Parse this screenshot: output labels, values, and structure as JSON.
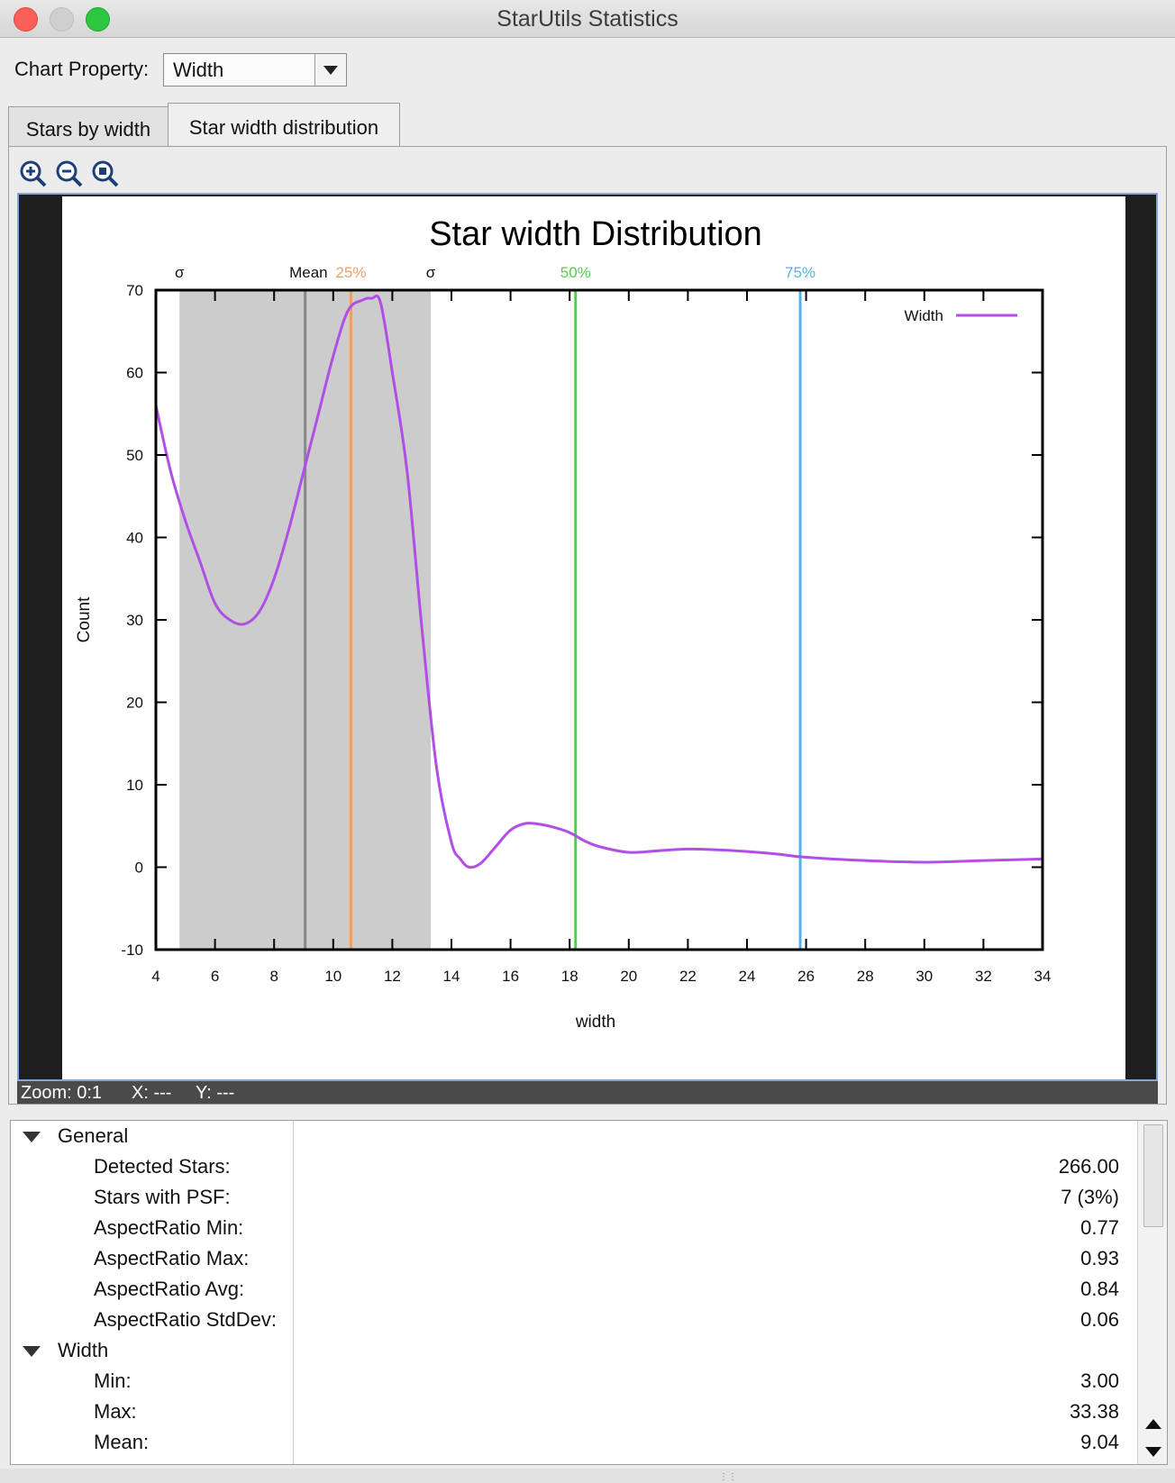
{
  "window": {
    "title": "StarUtils Statistics"
  },
  "toolbar": {
    "property_label": "Chart Property:",
    "property_value": "Width"
  },
  "tabs": [
    {
      "label": "Stars by width",
      "selected": false
    },
    {
      "label": "Star width distribution",
      "selected": true
    }
  ],
  "zoom_controls": [
    {
      "name": "zoom-in-icon"
    },
    {
      "name": "zoom-out-icon"
    },
    {
      "name": "zoom-reset-icon"
    }
  ],
  "status": {
    "zoom": "Zoom: 0:1",
    "x": "X: ---",
    "y": "Y: ---"
  },
  "chart_data": {
    "type": "line",
    "title": "Star width Distribution",
    "xlabel": "width",
    "ylabel": "Count",
    "xlim": [
      4,
      34
    ],
    "ylim": [
      -10,
      70
    ],
    "xticks": [
      4,
      6,
      8,
      10,
      12,
      14,
      16,
      18,
      20,
      22,
      24,
      26,
      28,
      30,
      32,
      34
    ],
    "yticks": [
      -10,
      0,
      10,
      20,
      30,
      40,
      50,
      60,
      70
    ],
    "grid": false,
    "legend": {
      "position": "top-right"
    },
    "series": [
      {
        "name": "Width",
        "color": "#b04ee6",
        "x": [
          4.0,
          4.5,
          5.0,
          5.5,
          6.0,
          6.5,
          7.0,
          7.5,
          8.0,
          8.5,
          9.0,
          9.5,
          10.0,
          10.5,
          11.0,
          11.3,
          11.6,
          12.0,
          12.5,
          13.0,
          13.5,
          14.0,
          14.3,
          14.6,
          15.0,
          15.5,
          16.0,
          16.5,
          17.0,
          17.5,
          18.0,
          18.5,
          19.0,
          20.0,
          21.0,
          22.0,
          23.0,
          24.0,
          25.0,
          26.0,
          28.0,
          30.0,
          32.0,
          34.0
        ],
        "y": [
          56,
          48,
          42,
          37,
          32,
          30,
          29.5,
          31,
          35,
          41,
          48,
          55,
          62,
          67.5,
          68.8,
          69,
          68.5,
          60,
          48,
          29,
          12,
          3,
          1,
          0,
          0.5,
          2.5,
          4.5,
          5.3,
          5.2,
          4.8,
          4.2,
          3.2,
          2.5,
          1.8,
          2.0,
          2.2,
          2.1,
          1.9,
          1.6,
          1.2,
          0.8,
          0.6,
          0.8,
          1.0
        ]
      }
    ],
    "bands": [
      {
        "from": 4.8,
        "to": 13.3,
        "color": "#cccccc"
      }
    ],
    "markers": [
      {
        "x": 4.8,
        "label": "σ",
        "color": "#888888",
        "label_color": "#111111",
        "line": false
      },
      {
        "x": 9.05,
        "label": "Mean",
        "color": "#888888",
        "label_color": "#111111",
        "line": true
      },
      {
        "x": 10.6,
        "label": "25%",
        "color": "#e8a06a",
        "label_color": "#e8a06a",
        "line": true
      },
      {
        "x": 13.3,
        "label": "σ",
        "color": "#888888",
        "label_color": "#111111",
        "line": false
      },
      {
        "x": 18.2,
        "label": "50%",
        "color": "#4fcf4f",
        "label_color": "#4fcf4f",
        "line": true
      },
      {
        "x": 25.8,
        "label": "75%",
        "color": "#4fb4e6",
        "label_color": "#4fb4e6",
        "line": true
      }
    ]
  },
  "stats": {
    "groups": [
      {
        "label": "General",
        "items": [
          {
            "label": "Detected Stars:",
            "value": "266.00"
          },
          {
            "label": "Stars with PSF:",
            "value": "7 (3%)"
          },
          {
            "label": "AspectRatio Min:",
            "value": "0.77"
          },
          {
            "label": "AspectRatio Max:",
            "value": "0.93"
          },
          {
            "label": "AspectRatio Avg:",
            "value": "0.84"
          },
          {
            "label": "AspectRatio StdDev:",
            "value": "0.06"
          }
        ]
      },
      {
        "label": "Width",
        "items": [
          {
            "label": "Min:",
            "value": "3.00"
          },
          {
            "label": "Max:",
            "value": "33.38"
          },
          {
            "label": "Mean:",
            "value": "9.04"
          }
        ]
      }
    ]
  }
}
